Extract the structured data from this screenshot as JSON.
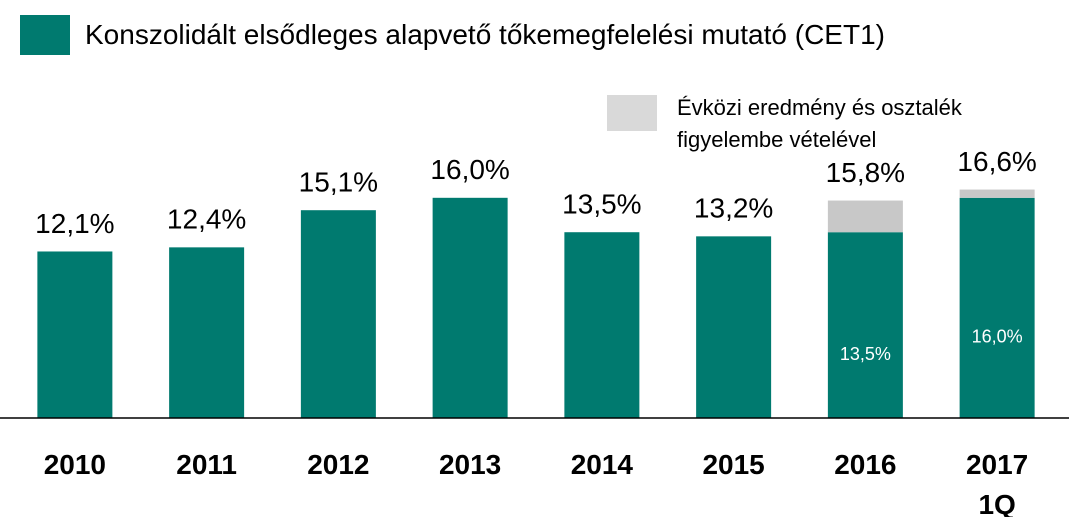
{
  "chart_data": {
    "type": "stacked_bar",
    "categories": [
      "2010",
      "2011",
      "2012",
      "2013",
      "2014",
      "2015",
      "2016",
      "2017 1Q"
    ],
    "series": [
      {
        "name": "Konszolidált elsődleges alapvető tőkemegfelelési mutató (CET1)",
        "color": "#007a6f",
        "values": [
          12.1,
          12.4,
          15.1,
          16.0,
          13.5,
          13.2,
          13.5,
          16.0
        ],
        "value_labels": [
          null,
          null,
          null,
          null,
          null,
          null,
          "13,5%",
          "16,0%"
        ]
      },
      {
        "name": "Évközi eredmény és osztalék figyelembe vételével",
        "color": "#c8c8c8",
        "values": [
          null,
          null,
          null,
          null,
          null,
          null,
          2.3,
          0.6
        ]
      }
    ],
    "totals": [
      12.1,
      12.4,
      15.1,
      16.0,
      13.5,
      13.2,
      15.8,
      16.6
    ],
    "total_labels": [
      "12,1%",
      "12,4%",
      "15,1%",
      "16,0%",
      "13,5%",
      "13,2%",
      "15,8%",
      "16,6%"
    ],
    "ylim": [
      0,
      21
    ]
  }
}
